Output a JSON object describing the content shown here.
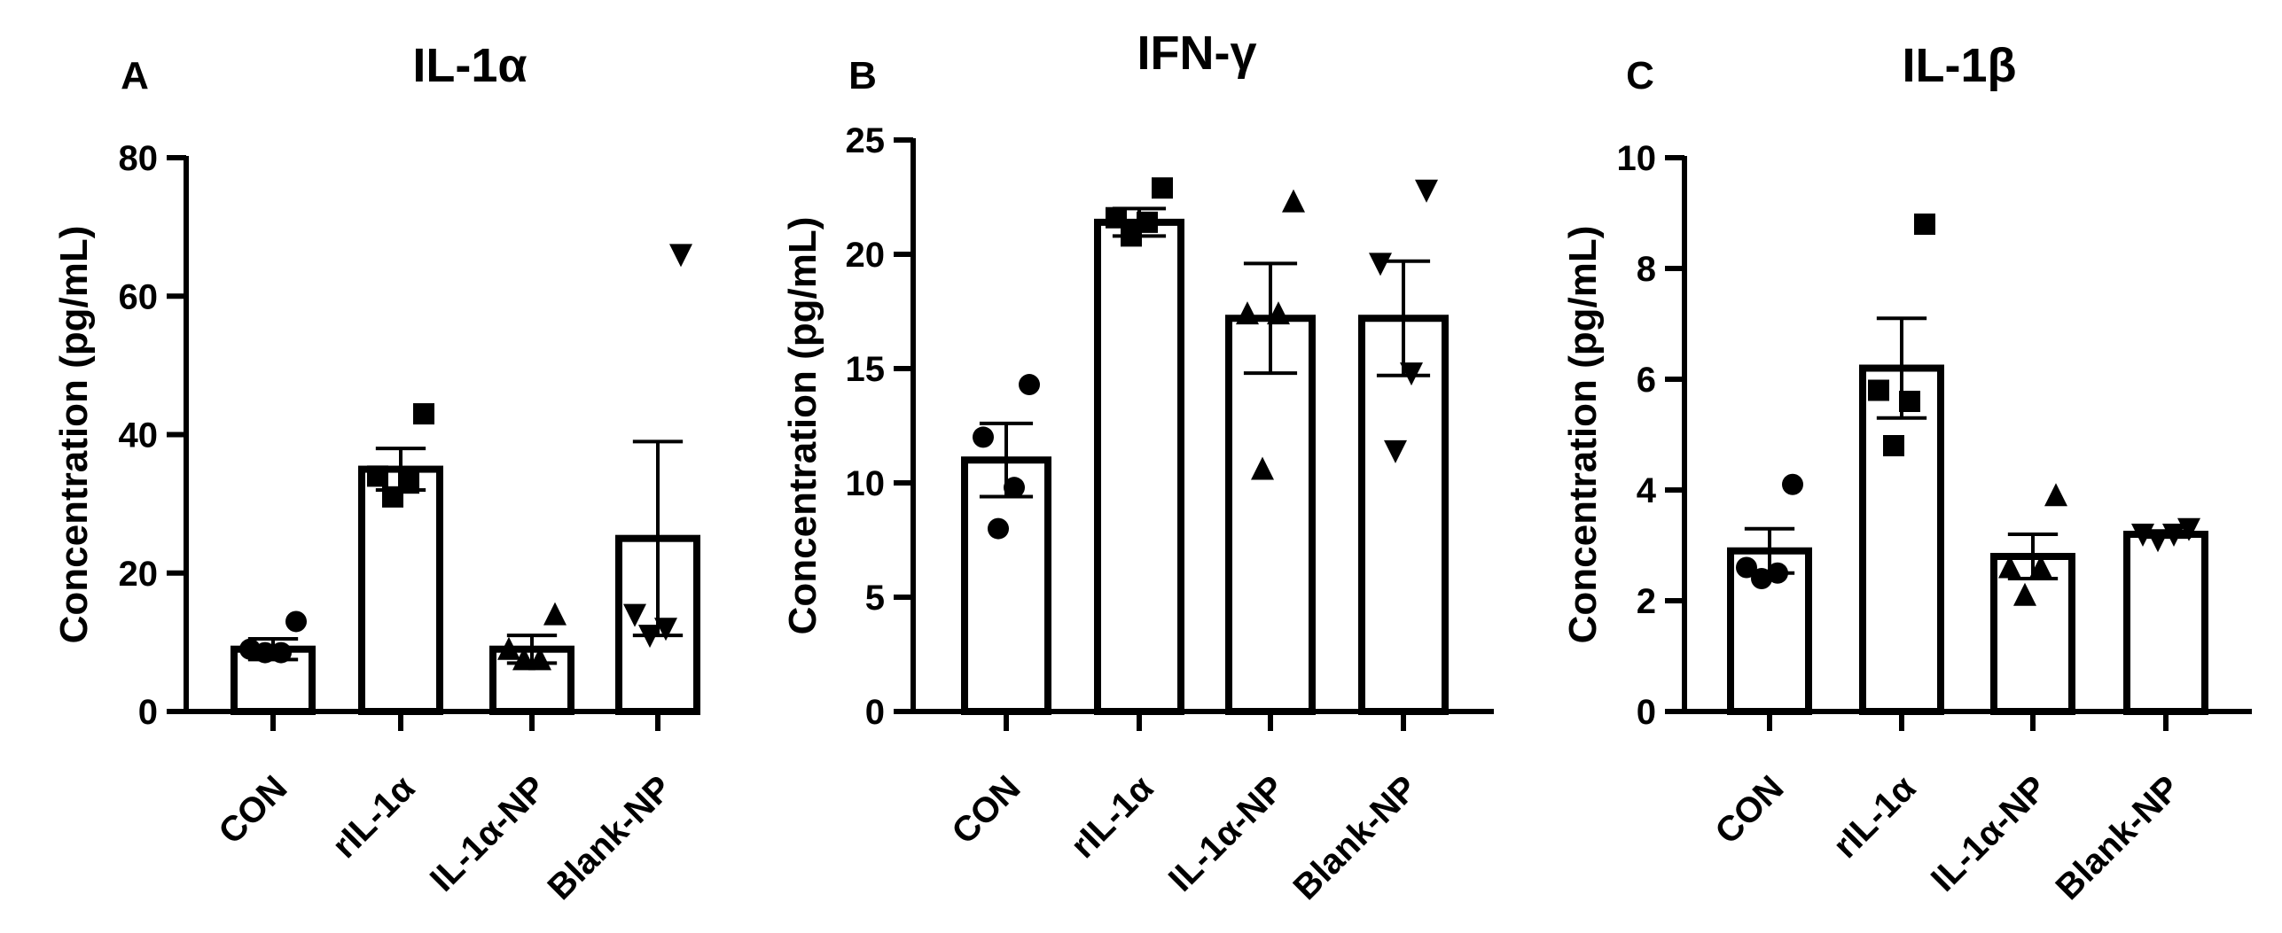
{
  "chart_data": [
    {
      "type": "bar",
      "panel": "A",
      "title": "IL-1α",
      "ylabel": "Concentration (pg/mL)",
      "ylim": [
        0,
        80
      ],
      "yticks": [
        0,
        20,
        40,
        60,
        80
      ],
      "categories": [
        "CON",
        "rIL-1α",
        "IL-1α-NP",
        "Blank-NP"
      ],
      "markers": [
        "circle",
        "square",
        "triangle-up",
        "triangle-down"
      ],
      "values": [
        9,
        35,
        9,
        25
      ],
      "errors": [
        1.5,
        3,
        2,
        14
      ],
      "points": [
        [
          8.5,
          8.5,
          9,
          13
        ],
        [
          31,
          33,
          34,
          43
        ],
        [
          7.5,
          7.5,
          9,
          14
        ],
        [
          11,
          12,
          14,
          66
        ]
      ]
    },
    {
      "type": "bar",
      "panel": "B",
      "title": "IFN-γ",
      "ylabel": "Concentration (pg/mL)",
      "ylim": [
        0,
        25
      ],
      "yticks": [
        0,
        5,
        10,
        15,
        20,
        25
      ],
      "categories": [
        "CON",
        "rIL-1α",
        "IL-1α-NP",
        "Blank-NP"
      ],
      "markers": [
        "circle",
        "square",
        "triangle-up",
        "triangle-down"
      ],
      "values": [
        11,
        21.4,
        17.2,
        17.2
      ],
      "errors": [
        1.6,
        0.6,
        2.4,
        2.5
      ],
      "points": [
        [
          8,
          9.8,
          12,
          14.3
        ],
        [
          20.8,
          21.4,
          21.6,
          22.9
        ],
        [
          10.6,
          17.4,
          17.4,
          22.3
        ],
        [
          11.4,
          14.8,
          19.6,
          22.8
        ]
      ]
    },
    {
      "type": "bar",
      "panel": "C",
      "title": "IL-1β",
      "ylabel": "Concentration (pg/mL)",
      "ylim": [
        0,
        10
      ],
      "yticks": [
        0,
        2,
        4,
        6,
        8,
        10
      ],
      "categories": [
        "CON",
        "rIL-1α",
        "IL-1α-NP",
        "Blank-NP"
      ],
      "markers": [
        "circle",
        "square",
        "triangle-up",
        "triangle-down"
      ],
      "values": [
        2.9,
        6.2,
        2.8,
        3.2
      ],
      "errors": [
        0.4,
        0.9,
        0.4,
        0.05
      ],
      "points": [
        [
          2.4,
          2.5,
          2.6,
          4.1
        ],
        [
          4.8,
          5.6,
          5.8,
          8.8
        ],
        [
          2.1,
          2.6,
          2.6,
          3.9
        ],
        [
          3.1,
          3.2,
          3.2,
          3.3
        ]
      ]
    }
  ]
}
